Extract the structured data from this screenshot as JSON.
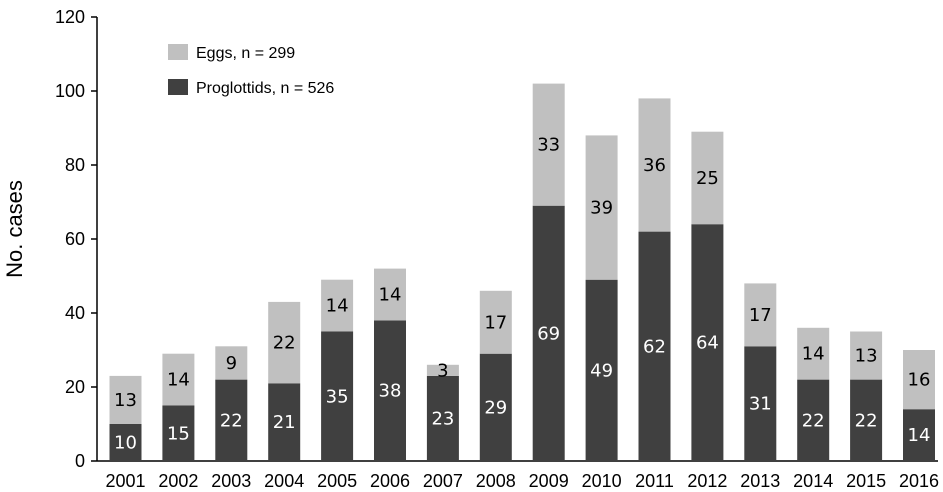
{
  "chart_data": {
    "type": "bar",
    "stacked": true,
    "categories": [
      "2001",
      "2002",
      "2003",
      "2004",
      "2005",
      "2006",
      "2007",
      "2008",
      "2009",
      "2010",
      "2011",
      "2012",
      "2013",
      "2014",
      "2015",
      "2016"
    ],
    "series": [
      {
        "name": "Proglottids, n = 526",
        "color": "#404040",
        "label_color": "#ffffff",
        "values": [
          10,
          15,
          22,
          21,
          35,
          38,
          23,
          29,
          69,
          49,
          62,
          64,
          31,
          22,
          22,
          14
        ]
      },
      {
        "name": "Eggs, n = 299",
        "color": "#c0c0c0",
        "label_color": "#000000",
        "values": [
          13,
          14,
          9,
          22,
          14,
          14,
          3,
          17,
          33,
          39,
          36,
          25,
          17,
          14,
          13,
          16
        ]
      }
    ],
    "title": "",
    "xlabel": "",
    "ylabel": "No. cases",
    "ylim": [
      0,
      120
    ],
    "yticks": [
      0,
      20,
      40,
      60,
      80,
      100,
      120
    ],
    "grid": false,
    "legend": {
      "placement": "top-left",
      "order": [
        "Eggs, n = 299",
        "Proglottids, n = 526"
      ]
    }
  }
}
